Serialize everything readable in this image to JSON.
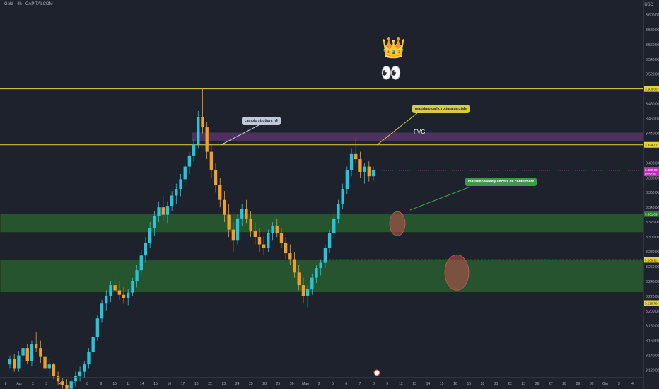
{
  "header": {
    "title": "Gold · 4h · CAPITALCOM",
    "currency": "USD"
  },
  "annotations": {
    "cambio_struttura": "cambio struttura h4",
    "massimo_daily": "massimo daily, rottura parziale",
    "massimo_weekly": "massimo weekly ancora da confermare",
    "fvg": "FVG",
    "crown_icon": "crown-emoji",
    "eyes_icon": "eyes-emoji"
  },
  "colors": {
    "background": "#1e222d",
    "up": "#26c6da",
    "down": "#f0a028",
    "level_line": "#e6d23c",
    "zone_green": "#2e7d32",
    "zone_purple": "#7b3f8f",
    "circle_red": "#c0504d",
    "price_badge": "#c030c0"
  },
  "chart_data": {
    "type": "candlestick",
    "symbol": "Gold",
    "timeframe": "4h",
    "ylim": [
      3110,
      3620
    ],
    "y_ticks": [
      "3.600,00",
      "3.580,00",
      "3.560,00",
      "3.540,00",
      "3.520,00",
      "3.480,00",
      "3.460,00",
      "3.440,00",
      "3.400,00",
      "3.380,00",
      "3.360,00",
      "3.340,00",
      "3.320,00",
      "3.300,00",
      "3.280,00",
      "3.260,00",
      "3.240,00",
      "3.220,00",
      "3.200,00",
      "3.180,00",
      "3.160,00",
      "3.140,00",
      "3.120,00"
    ],
    "x_ticks": [
      "8",
      "Apr",
      "2",
      "3",
      "4",
      "7",
      "8",
      "9",
      "10",
      "11",
      "14",
      "15",
      "16",
      "17",
      "18",
      "22",
      "23",
      "24",
      "25",
      "28",
      "29",
      "30",
      "Mag",
      "2",
      "5",
      "6",
      "7",
      "8",
      "9",
      "12",
      "13",
      "14",
      "15",
      "16",
      "19",
      "20",
      "21",
      "22",
      "23",
      "26",
      "27",
      "28",
      "29",
      "30",
      "Giu",
      "3",
      "4"
    ],
    "levels": [
      {
        "value": 3500.0,
        "label": "3.500,00"
      },
      {
        "value": 3424.47,
        "label": "3.424,47"
      },
      {
        "value": 3210.78,
        "label": "3.210,78"
      }
    ],
    "zones": [
      {
        "from": 3306,
        "to": 3331,
        "color": "green",
        "label": "3.331,09"
      },
      {
        "from": 3225,
        "to": 3269,
        "color": "green",
        "label": "3.269,11"
      },
      {
        "from": 3430,
        "to": 3441,
        "color": "purple",
        "label": "FVG"
      }
    ],
    "current_price": {
      "value": 3389.78,
      "label": "3.389,78",
      "countdown": "00:57:58"
    },
    "dashed_level": {
      "value": 3269.11,
      "label": "3.269,11"
    },
    "series": [
      {
        "ohlc": [
          [
            3128,
            3140,
            3122,
            3135
          ],
          [
            3135,
            3142,
            3118,
            3122
          ],
          [
            3122,
            3146,
            3118,
            3140
          ],
          [
            3140,
            3158,
            3132,
            3150
          ],
          [
            3150,
            3155,
            3128,
            3132
          ],
          [
            3132,
            3160,
            3125,
            3155
          ],
          [
            3155,
            3172,
            3145,
            3150
          ],
          [
            3150,
            3160,
            3130,
            3138
          ],
          [
            3138,
            3150,
            3118,
            3122
          ],
          [
            3122,
            3135,
            3112,
            3128
          ],
          [
            3128,
            3130,
            3108,
            3112
          ],
          [
            3112,
            3118,
            3100,
            3105
          ],
          [
            3105,
            3110,
            3095,
            3100
          ],
          [
            3100,
            3108,
            3090,
            3095
          ],
          [
            3095,
            3110,
            3088,
            3105
          ],
          [
            3105,
            3118,
            3098,
            3112
          ],
          [
            3112,
            3125,
            3105,
            3118
          ],
          [
            3118,
            3132,
            3110,
            3128
          ],
          [
            3128,
            3150,
            3122,
            3145
          ],
          [
            3145,
            3170,
            3140,
            3165
          ],
          [
            3165,
            3195,
            3160,
            3190
          ],
          [
            3190,
            3215,
            3185,
            3210
          ],
          [
            3210,
            3228,
            3200,
            3220
          ],
          [
            3220,
            3240,
            3212,
            3235
          ],
          [
            3235,
            3248,
            3222,
            3228
          ],
          [
            3228,
            3240,
            3215,
            3222
          ],
          [
            3222,
            3232,
            3210,
            3218
          ],
          [
            3218,
            3230,
            3208,
            3225
          ],
          [
            3225,
            3245,
            3220,
            3240
          ],
          [
            3240,
            3262,
            3232,
            3255
          ],
          [
            3255,
            3282,
            3248,
            3275
          ],
          [
            3275,
            3300,
            3265,
            3292
          ],
          [
            3292,
            3320,
            3285,
            3312
          ],
          [
            3312,
            3335,
            3302,
            3328
          ],
          [
            3328,
            3348,
            3320,
            3340
          ],
          [
            3340,
            3355,
            3322,
            3330
          ],
          [
            3330,
            3348,
            3318,
            3342
          ],
          [
            3342,
            3362,
            3335,
            3356
          ],
          [
            3356,
            3372,
            3345,
            3365
          ],
          [
            3365,
            3385,
            3355,
            3378
          ],
          [
            3378,
            3400,
            3370,
            3395
          ],
          [
            3395,
            3415,
            3385,
            3410
          ],
          [
            3410,
            3432,
            3402,
            3425
          ],
          [
            3425,
            3470,
            3420,
            3462
          ],
          [
            3462,
            3500,
            3440,
            3448
          ],
          [
            3448,
            3455,
            3405,
            3415
          ],
          [
            3415,
            3425,
            3380,
            3390
          ],
          [
            3390,
            3400,
            3360,
            3370
          ],
          [
            3370,
            3380,
            3340,
            3350
          ],
          [
            3350,
            3362,
            3320,
            3330
          ],
          [
            3330,
            3345,
            3300,
            3310
          ],
          [
            3310,
            3320,
            3280,
            3295
          ],
          [
            3295,
            3330,
            3290,
            3325
          ],
          [
            3325,
            3345,
            3315,
            3338
          ],
          [
            3338,
            3350,
            3318,
            3325
          ],
          [
            3325,
            3335,
            3300,
            3308
          ],
          [
            3308,
            3320,
            3290,
            3300
          ],
          [
            3300,
            3312,
            3280,
            3290
          ],
          [
            3290,
            3302,
            3275,
            3285
          ],
          [
            3285,
            3310,
            3280,
            3305
          ],
          [
            3305,
            3320,
            3295,
            3315
          ],
          [
            3315,
            3325,
            3300,
            3305
          ],
          [
            3305,
            3312,
            3285,
            3292
          ],
          [
            3292,
            3300,
            3270,
            3278
          ],
          [
            3278,
            3290,
            3262,
            3270
          ],
          [
            3270,
            3280,
            3245,
            3252
          ],
          [
            3252,
            3262,
            3228,
            3235
          ],
          [
            3235,
            3245,
            3210,
            3220
          ],
          [
            3220,
            3235,
            3205,
            3230
          ],
          [
            3230,
            3250,
            3222,
            3245
          ],
          [
            3245,
            3262,
            3238,
            3258
          ],
          [
            3258,
            3270,
            3248,
            3265
          ],
          [
            3265,
            3290,
            3258,
            3285
          ],
          [
            3285,
            3310,
            3278,
            3305
          ],
          [
            3305,
            3330,
            3298,
            3325
          ],
          [
            3325,
            3350,
            3318,
            3345
          ],
          [
            3345,
            3372,
            3338,
            3365
          ],
          [
            3365,
            3395,
            3358,
            3390
          ],
          [
            3390,
            3420,
            3382,
            3412
          ],
          [
            3412,
            3433,
            3400,
            3405
          ],
          [
            3405,
            3415,
            3380,
            3388
          ],
          [
            3388,
            3400,
            3372,
            3395
          ],
          [
            3395,
            3402,
            3375,
            3382
          ],
          [
            3382,
            3395,
            3376,
            3390
          ]
        ]
      }
    ],
    "circles": [
      {
        "x_label": "9",
        "price": 3318
      },
      {
        "x_label": "15",
        "price": 3252
      }
    ]
  }
}
